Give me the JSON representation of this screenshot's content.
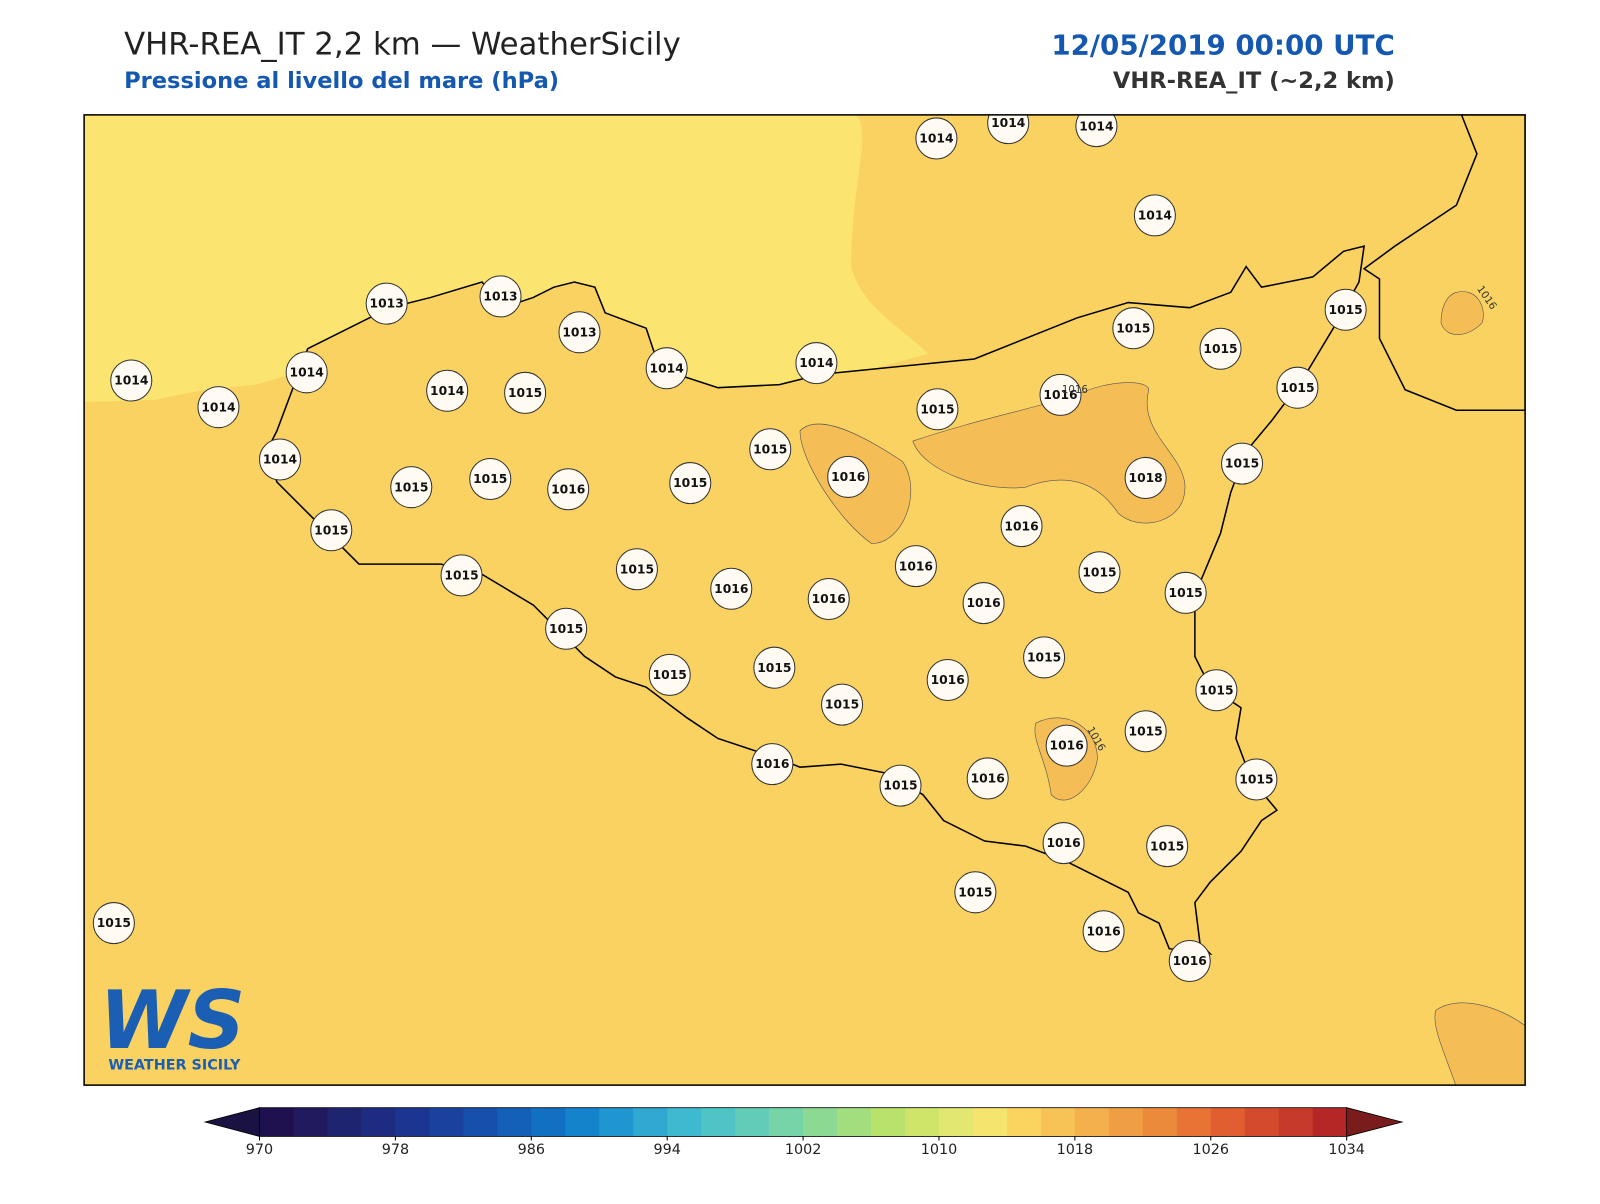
{
  "header": {
    "title": "VHR-REA_IT 2,2 km — WeatherSicily",
    "subtitle": "Pressione al livello del mare (hPa)",
    "date": "12/05/2019 00:00 UTC",
    "model": "VHR-REA_IT (~2,2 km)"
  },
  "stations": {
    "values": [
      1014,
      1014,
      1014,
      1014,
      1013,
      1013,
      1013,
      1014,
      1014,
      1014,
      1014,
      1015,
      1014,
      1014,
      1015,
      1015,
      1015,
      1015,
      1015,
      1016,
      1014,
      1015,
      1015,
      1016,
      1015,
      1015,
      1016,
      1018,
      1015,
      1015,
      1016,
      1016,
      1015,
      1015,
      1015,
      1015,
      1016,
      1016,
      1016,
      1015,
      1015,
      1015,
      1015,
      1016,
      1015,
      1015,
      1016,
      1015,
      1015,
      1016,
      1015,
      1016,
      1016,
      1015,
      1015,
      1016,
      1016,
      1015
    ]
  },
  "contour_labels": [
    1016,
    1016,
    1016
  ],
  "colorbar": {
    "lim": [
      970,
      1034
    ],
    "ticks": [
      970,
      978,
      986,
      994,
      1002,
      1010,
      1018,
      1026,
      1034
    ],
    "colors": [
      "#1f1150",
      "#221a5e",
      "#1f2470",
      "#1d2b80",
      "#1b3590",
      "#1a419e",
      "#1650ac",
      "#145fb8",
      "#1270c2",
      "#1583cb",
      "#2096d0",
      "#30a8d2",
      "#3fb9cf",
      "#4fc4c6",
      "#62ccb8",
      "#77d4a8",
      "#8cd993",
      "#a2de7e",
      "#b8e26c",
      "#cfe56a",
      "#e2e771",
      "#f5e56e",
      "#fbd460",
      "#f8c356",
      "#f4b04c",
      "#f09e43",
      "#ec8a3b",
      "#e87335",
      "#e05e30",
      "#d34b2c",
      "#c63a2a",
      "#b52726"
    ],
    "extend_colors": [
      "#1a1240",
      "#7a1c1c"
    ]
  },
  "logo": {
    "mark": "WS",
    "text": "WEATHER SICILY"
  }
}
